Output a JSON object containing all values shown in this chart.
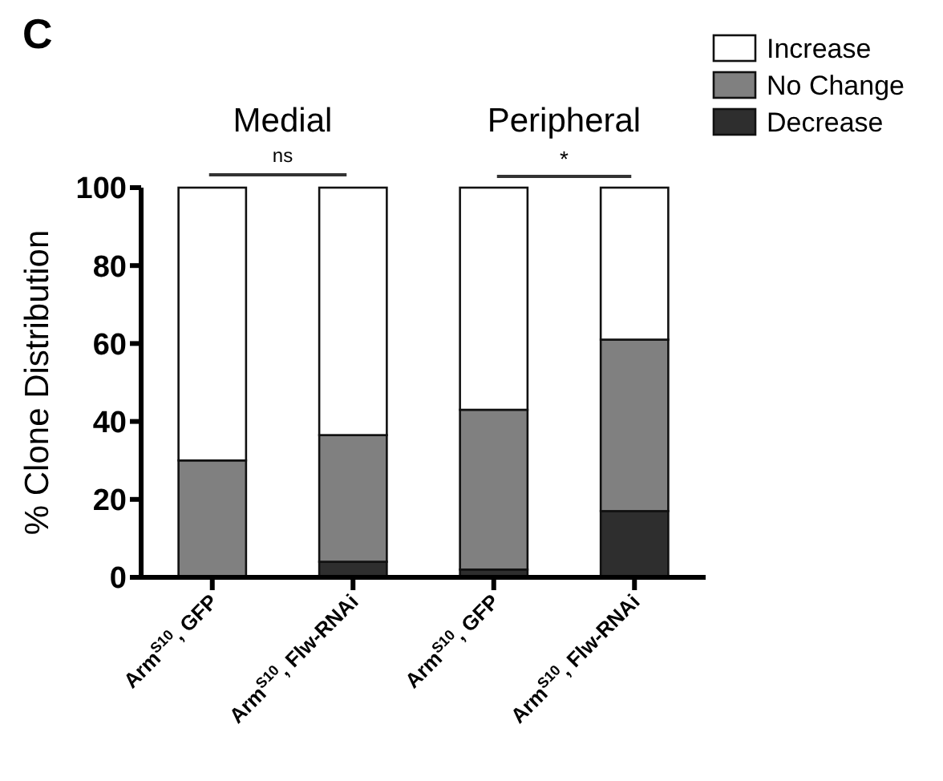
{
  "chart_data": {
    "type": "bar",
    "stacked": true,
    "ylabel": "% Clone Distribution",
    "categories": [
      "Arm$^{S10}$, GFP",
      "Arm$^{S10}$, Flw-RNAi",
      "Arm$^{S10}$, GFP",
      "Arm$^{S10}$, Flw-RNAi"
    ],
    "series": [
      {
        "name": "Decrease",
        "color": "#2e2e2e",
        "values": [
          0,
          4,
          2,
          17
        ]
      },
      {
        "name": "No Change",
        "color": "#808080",
        "values": [
          30,
          32.5,
          41,
          44
        ]
      },
      {
        "name": "Increase",
        "color": "#ffffff",
        "values": [
          70,
          63.5,
          57,
          39
        ]
      }
    ],
    "ylim": [
      0,
      100
    ],
    "yticks": [
      0,
      20,
      40,
      60,
      80,
      100
    ],
    "grid": false,
    "legend": "top right",
    "annotations": [
      "C",
      "Medial",
      "Peripheral",
      "ns",
      "*"
    ]
  }
}
